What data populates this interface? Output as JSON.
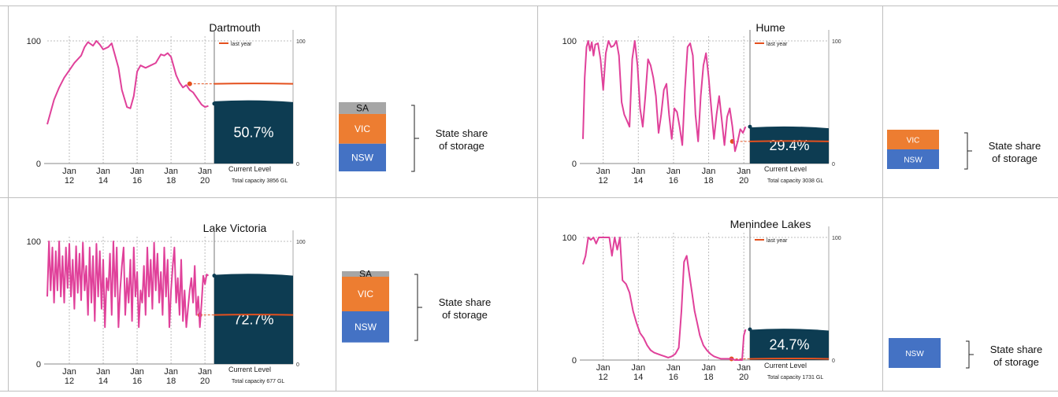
{
  "colors": {
    "line": "#e0419a",
    "last_year": "#e4501e",
    "fill": "#0d3c52",
    "grid": "#bdbdbd",
    "axis": "#888888",
    "SA": "#a6a6a6",
    "VIC": "#ed7d31",
    "NSW": "#4472c4"
  },
  "chart_data": [
    {
      "type": "line",
      "title": "Dartmouth",
      "ylim": [
        0,
        100
      ],
      "y_ticks": [
        "0",
        "100"
      ],
      "right_ticks": [
        "0",
        "100"
      ],
      "x_ticks": [
        {
          "line1": "Jan",
          "line2": "12"
        },
        {
          "line1": "Jan",
          "line2": "14"
        },
        {
          "line1": "Jan",
          "line2": "16"
        },
        {
          "line1": "Jan",
          "line2": "18"
        },
        {
          "line1": "Jan",
          "line2": "20"
        }
      ],
      "x_tick_years": [
        2012,
        2014,
        2016,
        2018,
        2020
      ],
      "xlim": [
        2010.7,
        2020.55
      ],
      "series": [
        {
          "name": "Storage level",
          "x": [
            2010.7,
            2010.9,
            2011.1,
            2011.4,
            2011.7,
            2012.0,
            2012.3,
            2012.7,
            2012.9,
            2013.1,
            2013.4,
            2013.6,
            2013.8,
            2014.0,
            2014.3,
            2014.5,
            2014.7,
            2014.9,
            2015.1,
            2015.4,
            2015.6,
            2015.8,
            2016.0,
            2016.2,
            2016.5,
            2016.8,
            2017.1,
            2017.4,
            2017.6,
            2017.8,
            2018.0,
            2018.3,
            2018.5,
            2018.7,
            2018.9,
            2019.1,
            2019.3,
            2019.6,
            2019.8,
            2020.0,
            2020.2
          ],
          "y": [
            32,
            42,
            52,
            62,
            70,
            76,
            82,
            88,
            95,
            99,
            96,
            100,
            97,
            93,
            95,
            98,
            88,
            78,
            60,
            46,
            45,
            55,
            75,
            80,
            78,
            80,
            82,
            89,
            88,
            90,
            87,
            72,
            66,
            62,
            64,
            60,
            58,
            52,
            48,
            46,
            47
          ]
        }
      ],
      "last_year": {
        "label": "last year",
        "value": 65
      },
      "current_level": {
        "label": "Current Level",
        "value": "50.7%",
        "percent": 50.7
      },
      "capacity": "Total capacity 3856 GL",
      "state_share": {
        "label_line1": "State share",
        "label_line2": "of storage",
        "segments": [
          {
            "state": "SA",
            "share": 0.17
          },
          {
            "state": "VIC",
            "share": 0.43
          },
          {
            "state": "NSW",
            "share": 0.4
          }
        ]
      }
    },
    {
      "type": "line",
      "title": "Hume",
      "ylim": [
        0,
        100
      ],
      "y_ticks": [
        "0",
        "100"
      ],
      "right_ticks": [
        "0",
        "100"
      ],
      "x_ticks": [
        {
          "line1": "Jan",
          "line2": "12"
        },
        {
          "line1": "Jan",
          "line2": "14"
        },
        {
          "line1": "Jan",
          "line2": "16"
        },
        {
          "line1": "Jan",
          "line2": "18"
        },
        {
          "line1": "Jan",
          "line2": "20"
        }
      ],
      "x_tick_years": [
        2012,
        2014,
        2016,
        2018,
        2020
      ],
      "xlim": [
        2010.85,
        2020.35
      ],
      "series": [
        {
          "name": "Storage level",
          "x": [
            2010.85,
            2010.95,
            2011.05,
            2011.15,
            2011.25,
            2011.35,
            2011.45,
            2011.55,
            2011.7,
            2011.85,
            2012.0,
            2012.15,
            2012.3,
            2012.45,
            2012.6,
            2012.75,
            2012.9,
            2013.05,
            2013.2,
            2013.35,
            2013.5,
            2013.65,
            2013.8,
            2013.95,
            2014.1,
            2014.25,
            2014.4,
            2014.55,
            2014.7,
            2014.85,
            2015.0,
            2015.15,
            2015.3,
            2015.45,
            2015.6,
            2015.75,
            2015.9,
            2016.05,
            2016.2,
            2016.35,
            2016.5,
            2016.65,
            2016.8,
            2016.95,
            2017.1,
            2017.25,
            2017.4,
            2017.55,
            2017.7,
            2017.85,
            2018.0,
            2018.15,
            2018.3,
            2018.45,
            2018.6,
            2018.75,
            2018.9,
            2019.05,
            2019.2,
            2019.35,
            2019.5,
            2019.65,
            2019.8,
            2019.95,
            2020.1
          ],
          "y": [
            20,
            70,
            95,
            100,
            92,
            99,
            88,
            97,
            98,
            85,
            60,
            90,
            100,
            95,
            96,
            100,
            88,
            50,
            40,
            35,
            30,
            85,
            100,
            80,
            45,
            30,
            55,
            85,
            80,
            70,
            55,
            25,
            40,
            60,
            65,
            40,
            20,
            45,
            42,
            30,
            15,
            60,
            95,
            98,
            88,
            40,
            18,
            55,
            80,
            90,
            70,
            45,
            20,
            40,
            55,
            35,
            15,
            38,
            45,
            30,
            10,
            18,
            28,
            25,
            30
          ]
        }
      ],
      "last_year": {
        "label": "last year",
        "value": 18
      },
      "current_level": {
        "label": "Current Level",
        "value": "29.4%",
        "percent": 29.4
      },
      "capacity": "Total capacity 3038 GL",
      "state_share": {
        "label_line1": "State share",
        "label_line2": "of storage",
        "segments": [
          {
            "state": "VIC",
            "share": 0.5
          },
          {
            "state": "NSW",
            "share": 0.5
          }
        ]
      }
    },
    {
      "type": "line",
      "title": "Lake Victoria",
      "ylim": [
        0,
        100
      ],
      "y_ticks": [
        "0",
        "100"
      ],
      "right_ticks": [
        "0",
        "100"
      ],
      "x_ticks": [
        {
          "line1": "Jan",
          "line2": "12"
        },
        {
          "line1": "Jan",
          "line2": "14"
        },
        {
          "line1": "Jan",
          "line2": "16"
        },
        {
          "line1": "Jan",
          "line2": "18"
        },
        {
          "line1": "Jan",
          "line2": "20"
        }
      ],
      "x_tick_years": [
        2012,
        2014,
        2016,
        2018,
        2020
      ],
      "xlim": [
        2010.7,
        2020.55
      ],
      "series": [
        {
          "name": "Storage level",
          "x": [
            2010.7,
            2010.8,
            2010.9,
            2011.0,
            2011.1,
            2011.2,
            2011.3,
            2011.4,
            2011.5,
            2011.6,
            2011.7,
            2011.8,
            2011.9,
            2012.0,
            2012.1,
            2012.2,
            2012.3,
            2012.4,
            2012.5,
            2012.6,
            2012.7,
            2012.8,
            2012.9,
            2013.0,
            2013.1,
            2013.2,
            2013.3,
            2013.4,
            2013.5,
            2013.6,
            2013.7,
            2013.8,
            2013.9,
            2014.0,
            2014.1,
            2014.2,
            2014.3,
            2014.4,
            2014.5,
            2014.6,
            2014.7,
            2014.8,
            2014.9,
            2015.0,
            2015.1,
            2015.2,
            2015.3,
            2015.4,
            2015.5,
            2015.6,
            2015.7,
            2015.8,
            2015.9,
            2016.0,
            2016.1,
            2016.2,
            2016.3,
            2016.4,
            2016.5,
            2016.6,
            2016.7,
            2016.8,
            2016.9,
            2017.0,
            2017.1,
            2017.2,
            2017.3,
            2017.4,
            2017.5,
            2017.6,
            2017.7,
            2017.8,
            2017.9,
            2018.0,
            2018.1,
            2018.2,
            2018.3,
            2018.4,
            2018.5,
            2018.6,
            2018.7,
            2018.8,
            2018.9,
            2019.0,
            2019.1,
            2019.2,
            2019.3,
            2019.4,
            2019.5,
            2019.6,
            2019.7,
            2019.8,
            2019.9,
            2020.0,
            2020.1,
            2020.2
          ],
          "y": [
            55,
            100,
            60,
            95,
            50,
            92,
            60,
            100,
            55,
            88,
            50,
            95,
            62,
            98,
            55,
            85,
            45,
            96,
            58,
            90,
            52,
            99,
            60,
            80,
            40,
            95,
            50,
            88,
            35,
            98,
            55,
            92,
            45,
            85,
            30,
            70,
            60,
            90,
            40,
            100,
            55,
            95,
            30,
            60,
            80,
            95,
            40,
            70,
            50,
            85,
            35,
            95,
            55,
            75,
            30,
            60,
            50,
            80,
            40,
            95,
            55,
            85,
            45,
            99,
            60,
            90,
            50,
            75,
            40,
            95,
            55,
            85,
            30,
            60,
            80,
            95,
            50,
            70,
            40,
            85,
            35,
            60,
            30,
            45,
            60,
            70,
            50,
            80,
            40,
            55,
            30,
            50,
            72,
            65,
            73,
            72
          ]
        }
      ],
      "last_year": {
        "label": "",
        "value": 40
      },
      "current_level": {
        "label": "Current Level",
        "value": "72.7%",
        "percent": 72.7
      },
      "capacity": "Total capacity 677 GL",
      "state_share": {
        "label_line1": "State share",
        "label_line2": "of storage",
        "segments": [
          {
            "state": "SA",
            "share": 0.05
          },
          {
            "state": "VIC",
            "share": 0.5
          },
          {
            "state": "NSW",
            "share": 0.45
          }
        ]
      }
    },
    {
      "type": "line",
      "title": "Menindee Lakes",
      "ylim": [
        0,
        100
      ],
      "y_ticks": [
        "0",
        "100"
      ],
      "right_ticks": [
        "0",
        "100"
      ],
      "x_ticks": [
        {
          "line1": "Jan",
          "line2": "12"
        },
        {
          "line1": "Jan",
          "line2": "14"
        },
        {
          "line1": "Jan",
          "line2": "16"
        },
        {
          "line1": "Jan",
          "line2": "18"
        },
        {
          "line1": "Jan",
          "line2": "20"
        }
      ],
      "x_tick_years": [
        2012,
        2014,
        2016,
        2018,
        2020
      ],
      "xlim": [
        2010.85,
        2020.35
      ],
      "series": [
        {
          "name": "Storage level",
          "x": [
            2010.85,
            2011.0,
            2011.15,
            2011.3,
            2011.45,
            2011.6,
            2011.75,
            2011.9,
            2012.05,
            2012.2,
            2012.35,
            2012.5,
            2012.65,
            2012.8,
            2012.95,
            2013.1,
            2013.3,
            2013.5,
            2013.7,
            2013.9,
            2014.1,
            2014.3,
            2014.5,
            2014.7,
            2014.9,
            2015.1,
            2015.3,
            2015.5,
            2015.7,
            2015.9,
            2016.1,
            2016.3,
            2016.45,
            2016.6,
            2016.75,
            2016.9,
            2017.05,
            2017.2,
            2017.35,
            2017.5,
            2017.7,
            2017.9,
            2018.1,
            2018.3,
            2018.5,
            2018.7,
            2018.9,
            2019.1,
            2019.3,
            2019.5,
            2019.7,
            2019.9,
            2020.0,
            2020.1
          ],
          "y": [
            78,
            85,
            100,
            98,
            100,
            95,
            100,
            100,
            100,
            100,
            100,
            85,
            100,
            90,
            100,
            65,
            62,
            55,
            40,
            30,
            22,
            18,
            12,
            8,
            6,
            5,
            4,
            3,
            2,
            3,
            5,
            10,
            40,
            80,
            85,
            70,
            55,
            40,
            30,
            20,
            12,
            8,
            5,
            3,
            2,
            1,
            1,
            1,
            1,
            0,
            0,
            0,
            20,
            25
          ]
        }
      ],
      "last_year": {
        "label": "last year",
        "value": 1
      },
      "current_level": {
        "label": "Current Level",
        "value": "24.7%",
        "percent": 24.7
      },
      "capacity": "Total capacity 1731 GL",
      "state_share": {
        "label_line1": "State share",
        "label_line2": "of storage",
        "segments": [
          {
            "state": "NSW",
            "share": 1.0
          }
        ]
      }
    }
  ]
}
